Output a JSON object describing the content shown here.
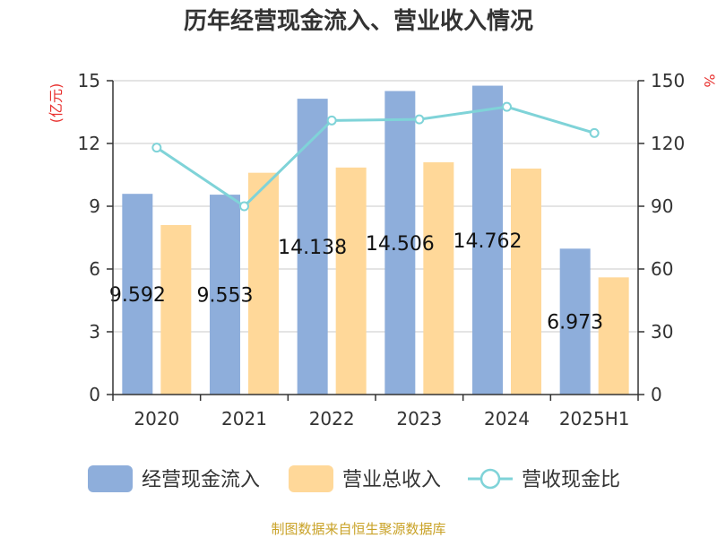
{
  "chart_data": {
    "type": "bar",
    "title": "历年经营现金流入、营业收入情况",
    "categories": [
      "2020",
      "2021",
      "2022",
      "2023",
      "2024",
      "2025H1"
    ],
    "left_axis": {
      "unit": "(亿元)",
      "ylim": [
        0,
        15
      ],
      "ticks": [
        "0",
        "3",
        "6",
        "9",
        "12",
        "15"
      ]
    },
    "right_axis": {
      "unit": "%",
      "ylim": [
        0,
        150
      ],
      "ticks": [
        "0",
        "30",
        "60",
        "90",
        "120",
        "150"
      ]
    },
    "series": [
      {
        "name": "经营现金流入",
        "type": "bar",
        "axis": "left",
        "color": "#8eaedb",
        "values": [
          9.592,
          9.553,
          14.138,
          14.506,
          14.762,
          6.973
        ],
        "labels": [
          "9.592",
          "9.553",
          "14.138",
          "14.506",
          "14.762",
          "6.973"
        ]
      },
      {
        "name": "营业总收入",
        "type": "bar",
        "axis": "left",
        "color": "#ffd899",
        "values": [
          8.1,
          10.6,
          10.85,
          11.1,
          10.8,
          5.6
        ]
      },
      {
        "name": "营收现金比",
        "type": "line",
        "axis": "right",
        "color": "#7fd3d8",
        "values": [
          118,
          90,
          131,
          131.5,
          137.5,
          125
        ]
      }
    ],
    "grid": true,
    "legend_position": "bottom",
    "source": "制图数据来自恒生聚源数据库"
  }
}
